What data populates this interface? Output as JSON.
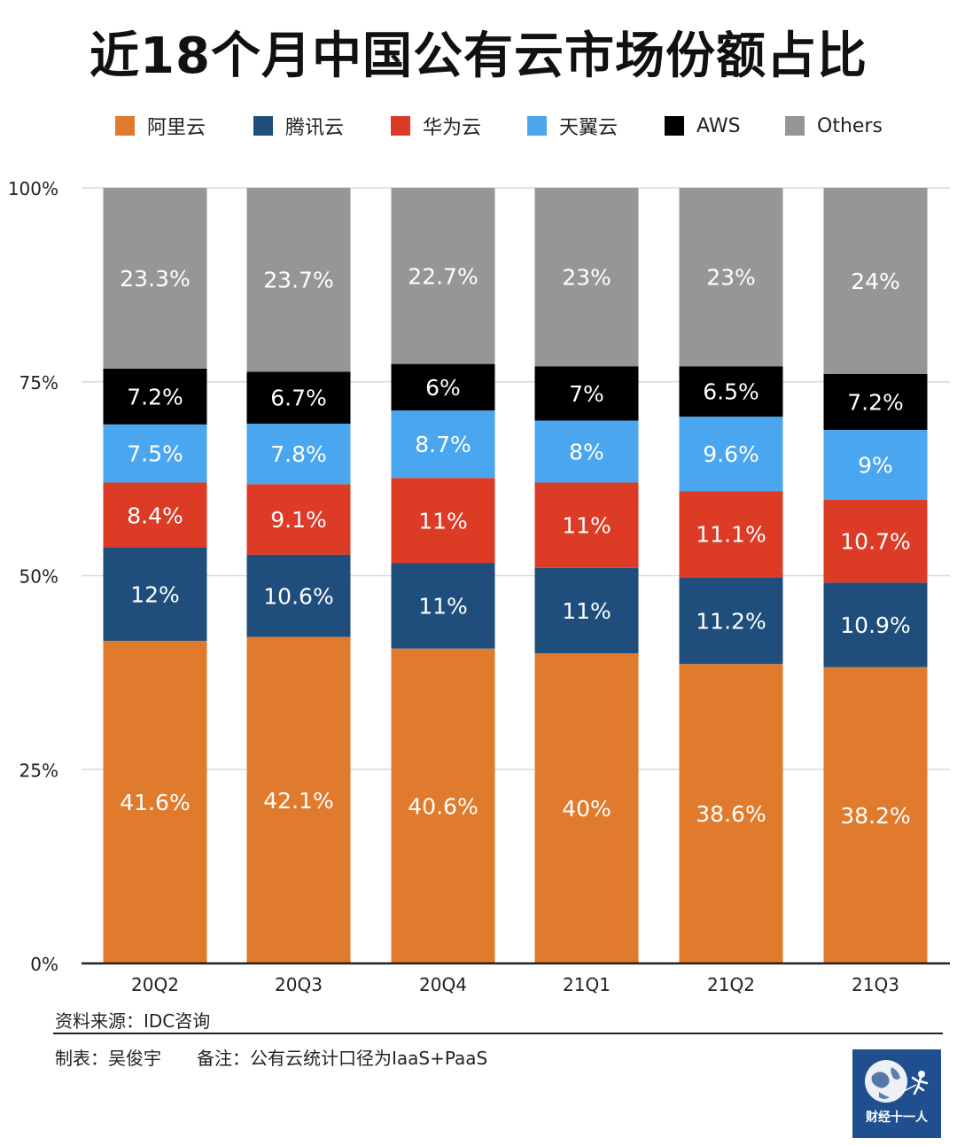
{
  "title": "近18个月中国公有云市场份额占比",
  "legend": [
    {
      "label": "阿里云",
      "color": "#e07b2e"
    },
    {
      "label": "腾讯云",
      "color": "#1f4e7d"
    },
    {
      "label": "华为云",
      "color": "#dc3b26"
    },
    {
      "label": "天翼云",
      "color": "#4aa6ef"
    },
    {
      "label": "AWS",
      "color": "#000000"
    },
    {
      "label": "Others",
      "color": "#969696"
    }
  ],
  "chart_data": {
    "type": "bar",
    "stacked": true,
    "title": "近18个月中国公有云市场份额占比",
    "categories": [
      "20Q2",
      "20Q3",
      "20Q4",
      "21Q1",
      "21Q2",
      "21Q3"
    ],
    "series": [
      {
        "name": "阿里云",
        "color": "#e07b2e",
        "values": [
          41.6,
          42.1,
          40.6,
          40,
          38.6,
          38.2
        ],
        "labels": [
          "41.6%",
          "42.1%",
          "40.6%",
          "40%",
          "38.6%",
          "38.2%"
        ]
      },
      {
        "name": "腾讯云",
        "color": "#1f4e7d",
        "values": [
          12,
          10.6,
          11,
          11,
          11.2,
          10.9
        ],
        "labels": [
          "12%",
          "10.6%",
          "11%",
          "11%",
          "11.2%",
          "10.9%"
        ]
      },
      {
        "name": "华为云",
        "color": "#dc3b26",
        "values": [
          8.4,
          9.1,
          11,
          11,
          11.1,
          10.7
        ],
        "labels": [
          "8.4%",
          "9.1%",
          "11%",
          "11%",
          "11.1%",
          "10.7%"
        ]
      },
      {
        "name": "天翼云",
        "color": "#4aa6ef",
        "values": [
          7.5,
          7.8,
          8.7,
          8,
          9.6,
          9
        ],
        "labels": [
          "7.5%",
          "7.8%",
          "8.7%",
          "8%",
          "9.6%",
          "9%"
        ]
      },
      {
        "name": "AWS",
        "color": "#000000",
        "values": [
          7.2,
          6.7,
          6,
          7,
          6.5,
          7.2
        ],
        "labels": [
          "7.2%",
          "6.7%",
          "6%",
          "7%",
          "6.5%",
          "7.2%"
        ]
      },
      {
        "name": "Others",
        "color": "#969696",
        "values": [
          23.3,
          23.7,
          22.7,
          23,
          23,
          24
        ],
        "labels": [
          "23.3%",
          "23.7%",
          "22.7%",
          "23%",
          "23%",
          "24%"
        ]
      }
    ],
    "ylim": [
      0,
      100
    ],
    "yticks": [
      0,
      25,
      50,
      75,
      100
    ],
    "ytick_labels": [
      "0%",
      "25%",
      "50%",
      "75%",
      "100%"
    ],
    "grid": true,
    "legend_position": "top"
  },
  "footer": {
    "source": "资料来源：IDC咨询",
    "maker": "制表：吴俊宇",
    "remark": "备注：公有云统计口径为IaaS+PaaS"
  },
  "logo": {
    "text": "财经十一人",
    "background": "#1f4f8f"
  }
}
